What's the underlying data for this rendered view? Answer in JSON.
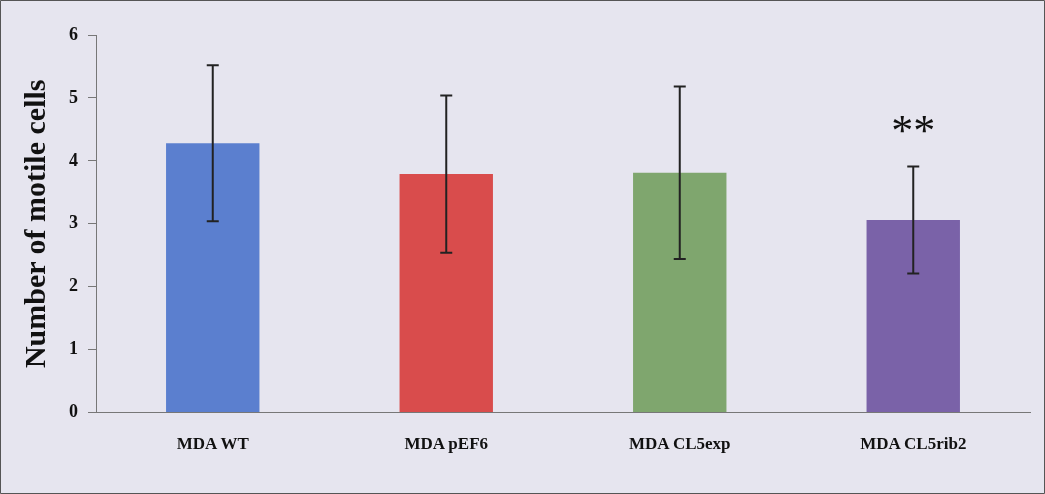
{
  "chart_data": {
    "type": "bar",
    "ylabel": "Number of motile cells",
    "categories": [
      "MDA WT",
      "MDA pEF6",
      "MDA CL5exp",
      "MDA CL5rib2"
    ],
    "values": [
      4.28,
      3.79,
      3.81,
      3.06
    ],
    "colors": [
      "#5b7fcf",
      "#d94c4c",
      "#7fa66e",
      "#7a62a8"
    ],
    "errors": [
      1.24,
      1.25,
      1.37,
      0.85
    ],
    "ylim": [
      0,
      6
    ],
    "yticks": [
      0,
      1,
      2,
      3,
      4,
      5,
      6
    ],
    "grid": false,
    "legend": false,
    "annotations": [
      "**"
    ]
  }
}
